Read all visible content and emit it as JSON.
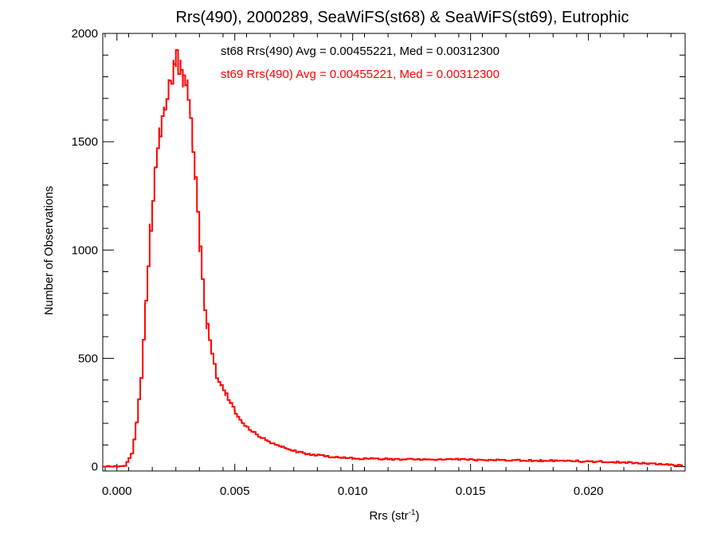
{
  "chart_data": {
    "type": "histogram",
    "title": "Rrs(490), 2000289, SeaWiFS(st68) & SeaWiFS(st69), Eutrophic",
    "xlabel": "Rrs (str",
    "xlabel_sup": "-1",
    "xlabel_close": ")",
    "ylabel": "Number of Observations",
    "xlim": [
      -0.0006,
      0.0241
    ],
    "ylim": [
      -20,
      2000
    ],
    "xticks": [
      "0.000",
      "0.005",
      "0.010",
      "0.015",
      "0.020"
    ],
    "xtick_values": [
      0.0,
      0.005,
      0.01,
      0.015,
      0.02
    ],
    "yticks": [
      "0",
      "500",
      "1000",
      "1500",
      "2000"
    ],
    "ytick_values": [
      0,
      500,
      1000,
      1500,
      2000
    ],
    "grid": false,
    "legend": [
      {
        "text": "st68 Rrs(490) Avg = 0.00455221, Med = 0.00312300",
        "color": "#000000"
      },
      {
        "text": "st69 Rrs(490) Avg = 0.00455221, Med = 0.00312300",
        "color": "#ff0000"
      }
    ],
    "series": [
      {
        "name": "st69 Rrs(490)",
        "color": "#ff0000",
        "x": [
          -0.0006,
          0.0,
          0.0003,
          0.0006,
          0.0008,
          0.001,
          0.0012,
          0.0014,
          0.0016,
          0.0018,
          0.002,
          0.0022,
          0.0023,
          0.0024,
          0.0025,
          0.0026,
          0.0027,
          0.0028,
          0.0029,
          0.003,
          0.0031,
          0.0032,
          0.0033,
          0.0034,
          0.0035,
          0.0036,
          0.0037,
          0.0038,
          0.0039,
          0.004,
          0.0041,
          0.0042,
          0.0044,
          0.0046,
          0.0048,
          0.005,
          0.0053,
          0.0056,
          0.006,
          0.0065,
          0.007,
          0.0075,
          0.008,
          0.0085,
          0.009,
          0.0095,
          0.01,
          0.011,
          0.012,
          0.013,
          0.014,
          0.015,
          0.016,
          0.017,
          0.018,
          0.019,
          0.02,
          0.021,
          0.022,
          0.023,
          0.0235,
          0.024
        ],
        "y": [
          0,
          0,
          5,
          60,
          200,
          420,
          760,
          1120,
          1420,
          1560,
          1680,
          1760,
          1800,
          1850,
          1900,
          1860,
          1840,
          1800,
          1790,
          1740,
          1620,
          1490,
          1330,
          1180,
          1000,
          850,
          730,
          650,
          590,
          530,
          470,
          420,
          370,
          330,
          290,
          250,
          200,
          170,
          140,
          110,
          90,
          72,
          60,
          52,
          46,
          42,
          38,
          36,
          34,
          33,
          34,
          32,
          30,
          29,
          28,
          26,
          24,
          22,
          18,
          12,
          8,
          5
        ]
      }
    ]
  }
}
